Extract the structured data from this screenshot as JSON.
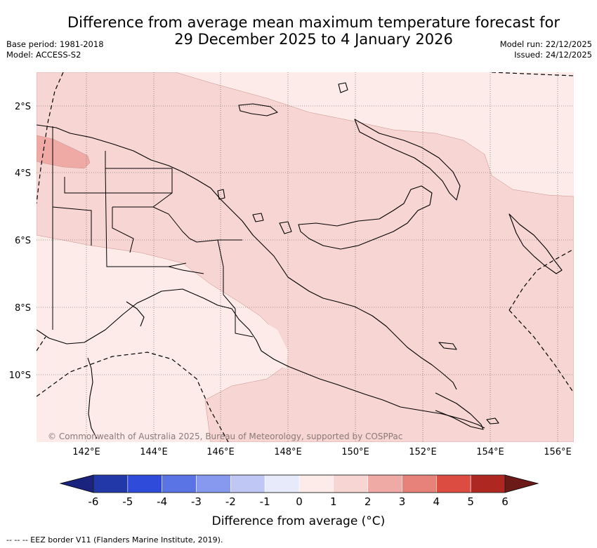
{
  "title": {
    "line1": "Difference from average mean maximum temperature forecast for",
    "line2": "29 December 2025 to 4 January 2026"
  },
  "meta": {
    "base_period": "Base period: 1981-2018",
    "model": "Model: ACCESS-S2",
    "model_run": "Model run: 22/12/2025",
    "issued": "Issued: 24/12/2025"
  },
  "map": {
    "lat_labels": [
      "2°S",
      "4°S",
      "6°S",
      "8°S",
      "10°S"
    ],
    "lon_labels": [
      "142°E",
      "144°E",
      "146°E",
      "148°E",
      "150°E",
      "152°E",
      "154°E",
      "156°E"
    ],
    "copyright": "© Commonwealth of Australia 2025, Bureau of Meteorology, supported by COSPPac"
  },
  "colorbar": {
    "ticks": [
      "-6",
      "-5",
      "-4",
      "-3",
      "-2",
      "-1",
      "0",
      "1",
      "2",
      "3",
      "4",
      "5",
      "6"
    ],
    "under_color": "#1a237e",
    "over_color": "#6b1a17",
    "colors": [
      "#2238a8",
      "#2f4bd9",
      "#5a74e6",
      "#8799ee",
      "#bfc8f5",
      "#e6eafb",
      "#fcebe8",
      "#f6d5d2",
      "#efaaa5",
      "#e7827b",
      "#dc4c40",
      "#ae2721"
    ],
    "label": "Difference from average (°C)"
  },
  "footnote": "--  --  -- EEZ border V11 (Flanders Marine Institute, 2019).",
  "colors": {
    "background": "#ffffff",
    "anomaly_0_1": "#fcebe8",
    "anomaly_1_2": "#f6d5d2",
    "anomaly_2_3": "#efaaa5",
    "coastline": "#000000"
  }
}
